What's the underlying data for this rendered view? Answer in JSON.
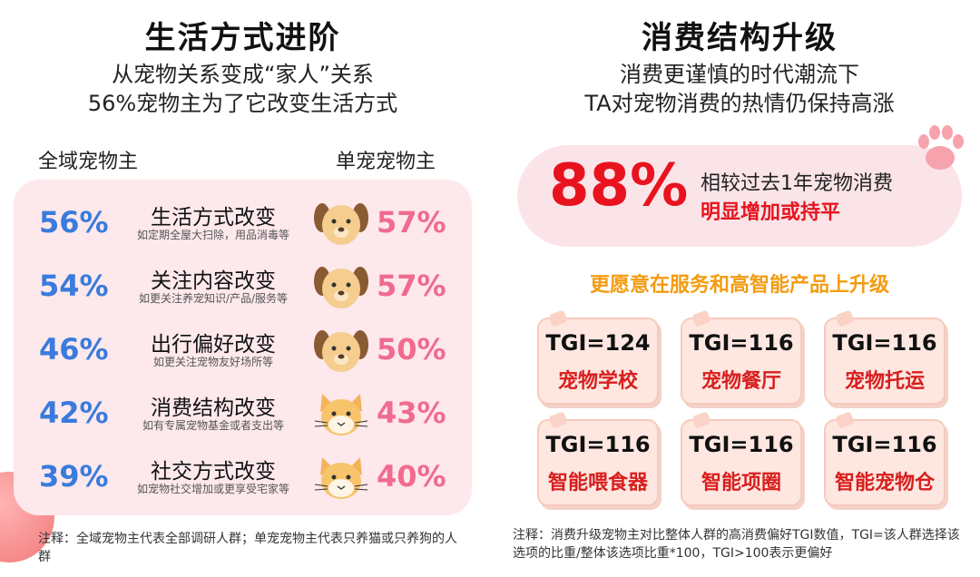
{
  "left": {
    "title": "生活方式进阶",
    "subtitle_line1": "从宠物关系变成“家人”关系",
    "subtitle_line2": "56%宠物主为了它改变生活方式",
    "col_all": "全域宠物主",
    "col_single": "单宠宠物主",
    "rows": [
      {
        "all": "56%",
        "label": "生活方式改变",
        "sub": "如定期全屋大扫除，用品消毒等",
        "single": "57%",
        "pet": "dog-icon"
      },
      {
        "all": "54%",
        "label": "关注内容改变",
        "sub": "如更关注养宠知识/产品/服务等",
        "single": "57%",
        "pet": "dog-icon"
      },
      {
        "all": "46%",
        "label": "出行偏好改变",
        "sub": "如更关注宠物友好场所等",
        "single": "50%",
        "pet": "dog-icon"
      },
      {
        "all": "42%",
        "label": "消费结构改变",
        "sub": "如有专属宠物基金或者支出等",
        "single": "43%",
        "pet": "cat-icon"
      },
      {
        "all": "39%",
        "label": "社交方式改变",
        "sub": "如宠物社交增加或更享受宅家等",
        "single": "40%",
        "pet": "cat-icon"
      }
    ],
    "note": "注释：全域宠物主代表全部调研人群；单宠宠物主代表只养猫或只养狗的人群"
  },
  "right": {
    "title": "消费结构升级",
    "subtitle_line1": "消费更谨慎的时代潮流下",
    "subtitle_line2": "TA对宠物消费的热情仍保持高涨",
    "big_number": "88%",
    "big_text1": "相较过去1年宠物消费",
    "big_text2": "明显增加或持平",
    "upgrade_title": "更愿意在服务和高智能产品上升级",
    "tgi": [
      {
        "value": "TGI=124",
        "name": "宠物学校"
      },
      {
        "value": "TGI=116",
        "name": "宠物餐厅"
      },
      {
        "value": "TGI=116",
        "name": "宠物托运"
      },
      {
        "value": "TGI=116",
        "name": "智能喂食器"
      },
      {
        "value": "TGI=116",
        "name": "智能项圈"
      },
      {
        "value": "TGI=116",
        "name": "智能宠物仓"
      }
    ],
    "note": "注释：消费升级宠物主对比整体人群的高消费偏好TGI数值，TGI=该人群选择该选项的比重/整体该选项比重*100，TGI>100表示更偏好"
  },
  "colors": {
    "blue": "#3a7bdc",
    "pink": "#f06b8f",
    "red": "#e8131f",
    "orange": "#f39c12"
  }
}
